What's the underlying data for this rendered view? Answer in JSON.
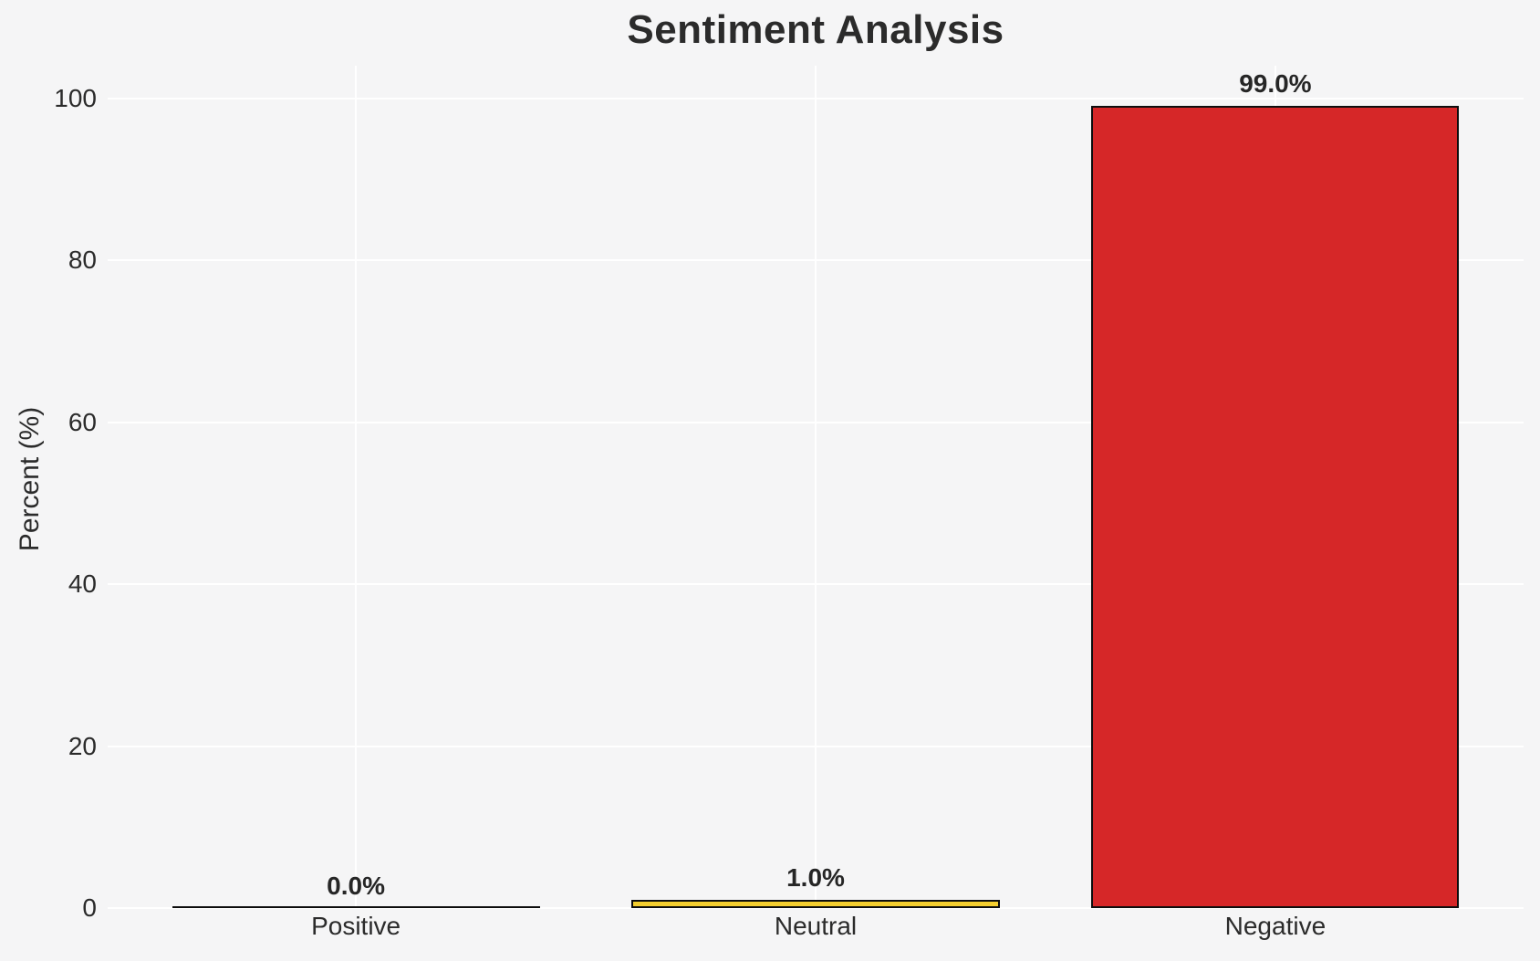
{
  "chart_data": {
    "type": "bar",
    "title": "Sentiment Analysis",
    "xlabel": "",
    "ylabel": "Percent (%)",
    "categories": [
      "Positive",
      "Neutral",
      "Negative"
    ],
    "values": [
      0.0,
      1.0,
      99.0
    ],
    "value_labels": [
      "0.0%",
      "1.0%",
      "99.0%"
    ],
    "bar_colors": [
      "none",
      "#f4ce2f",
      "#d62728"
    ],
    "bar_edge_color": "#0d0d0d",
    "yticks": [
      0,
      20,
      40,
      60,
      80,
      100
    ],
    "ylim": [
      0,
      104
    ],
    "grid": true,
    "grid_color": "#ffffff",
    "legend_position": "none",
    "background_color": "#f5f5f6",
    "text_color": "#262626"
  }
}
